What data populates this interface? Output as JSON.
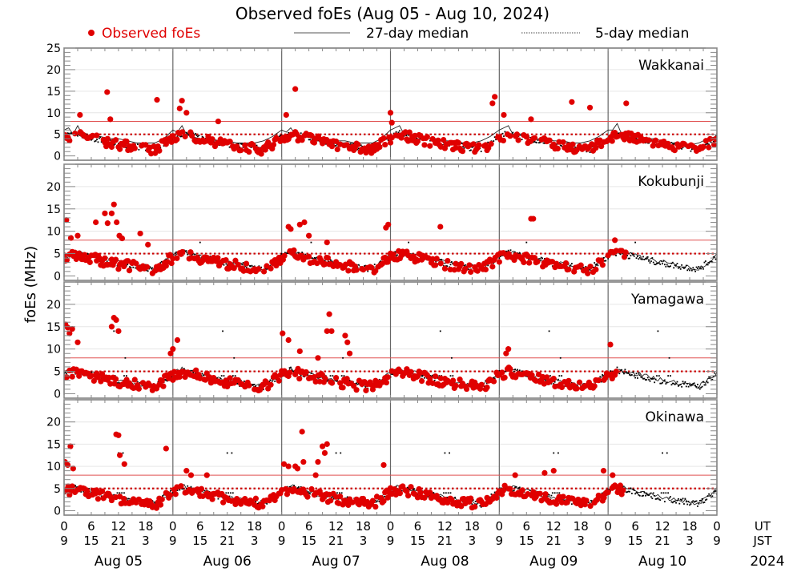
{
  "chart_data": {
    "type": "scatter",
    "title": "Observed foEs (Aug 05 - Aug 10, 2024)",
    "ylabel": "foEs (MHz)",
    "xlabel": "",
    "legend": {
      "placement": "top",
      "entries": [
        {
          "name": "Observed foEs",
          "style": "red-dots",
          "color": "#e00000"
        },
        {
          "name": "27-day median",
          "style": "solid-line",
          "color": "#000000"
        },
        {
          "name": "5-day median",
          "style": "dotted-line",
          "color": "#000000"
        }
      ]
    },
    "x_unit_hours_total": 144,
    "x_ticks_ut": [
      "0",
      "6",
      "12",
      "18",
      "0",
      "6",
      "12",
      "18",
      "0",
      "6",
      "12",
      "18",
      "0",
      "6",
      "12",
      "18",
      "0",
      "6",
      "12",
      "18",
      "0",
      "6",
      "12",
      "18",
      "0"
    ],
    "x_ticks_jst": [
      "9",
      "15",
      "21",
      "3",
      "9",
      "15",
      "21",
      "3",
      "9",
      "15",
      "21",
      "3",
      "9",
      "15",
      "21",
      "3",
      "9",
      "15",
      "21",
      "3",
      "9",
      "15",
      "21",
      "3",
      "9"
    ],
    "x_row_labels": [
      "UT",
      "JST"
    ],
    "day_labels": [
      "Aug 05",
      "Aug 06",
      "Aug 07",
      "Aug 08",
      "Aug 09",
      "Aug 10"
    ],
    "year_label": "2024",
    "grid": true,
    "reference_lines": [
      {
        "value": 8,
        "style": "solid",
        "color": "#e05050"
      },
      {
        "value": 5,
        "style": "dotted",
        "color": "#cc0000"
      }
    ],
    "panels": [
      {
        "station": "Wakkanai",
        "ylim": [
          -1,
          25
        ],
        "yticks": [
          "0",
          "5",
          "10",
          "15",
          "20",
          "25"
        ],
        "observed_hours_end": 144,
        "spikes": [
          [
            3.5,
            9.5
          ],
          [
            9.5,
            14.8
          ],
          [
            10.2,
            8.5
          ],
          [
            20.5,
            13
          ],
          [
            26,
            12.8
          ],
          [
            27,
            10
          ],
          [
            25.5,
            11
          ],
          [
            34,
            8
          ],
          [
            51,
            15.5
          ],
          [
            49,
            9.5
          ],
          [
            72,
            10
          ],
          [
            95,
            13.7
          ],
          [
            94.5,
            12.2
          ],
          [
            97,
            9.5
          ],
          [
            72.3,
            7.7
          ],
          [
            112,
            12.5
          ],
          [
            116,
            11.2
          ],
          [
            124,
            12.2
          ],
          [
            103,
            8.5
          ]
        ],
        "baseline_27": [
          [
            0,
            6
          ],
          [
            1,
            6.5
          ],
          [
            2,
            5
          ],
          [
            3,
            7
          ],
          [
            4,
            5
          ],
          [
            6,
            4.5
          ],
          [
            8,
            4.5
          ],
          [
            10,
            4
          ],
          [
            12,
            4
          ],
          [
            14,
            3.5
          ],
          [
            16,
            3
          ],
          [
            18,
            3
          ],
          [
            20,
            3
          ],
          [
            22,
            4
          ],
          [
            24,
            6
          ],
          [
            25,
            5.5
          ],
          [
            26,
            7
          ],
          [
            27,
            5
          ],
          [
            28,
            4.5
          ],
          [
            30,
            4
          ],
          [
            32,
            4
          ],
          [
            34,
            3.5
          ],
          [
            36,
            3.5
          ],
          [
            38,
            3
          ],
          [
            40,
            3
          ],
          [
            42,
            3
          ],
          [
            44,
            3.5
          ],
          [
            46,
            4.5
          ],
          [
            48,
            6
          ],
          [
            49,
            5.5
          ],
          [
            50,
            6.5
          ],
          [
            51,
            5
          ],
          [
            54,
            4.5
          ],
          [
            56,
            4
          ],
          [
            58,
            4
          ],
          [
            60,
            3.5
          ],
          [
            62,
            3.5
          ],
          [
            64,
            3
          ],
          [
            66,
            3
          ],
          [
            68,
            3
          ],
          [
            70,
            4
          ],
          [
            72,
            6
          ],
          [
            73,
            6.5
          ],
          [
            74,
            7
          ],
          [
            75,
            5
          ],
          [
            78,
            4.5
          ],
          [
            80,
            4
          ],
          [
            82,
            4
          ],
          [
            84,
            3.5
          ],
          [
            86,
            3.5
          ],
          [
            88,
            3
          ],
          [
            90,
            3
          ],
          [
            92,
            3.5
          ],
          [
            94,
            4.5
          ],
          [
            96,
            6
          ],
          [
            97,
            6.5
          ],
          [
            98,
            7
          ],
          [
            99,
            5
          ],
          [
            102,
            4.5
          ],
          [
            104,
            4
          ],
          [
            106,
            4
          ],
          [
            108,
            3.5
          ],
          [
            110,
            3.5
          ],
          [
            112,
            3
          ],
          [
            114,
            3
          ],
          [
            116,
            3.5
          ],
          [
            118,
            4.5
          ],
          [
            120,
            6
          ],
          [
            121,
            6
          ],
          [
            122,
            7.5
          ],
          [
            123,
            5
          ],
          [
            126,
            4.5
          ],
          [
            128,
            4
          ],
          [
            130,
            4
          ],
          [
            132,
            3.5
          ],
          [
            134,
            3
          ],
          [
            136,
            3
          ],
          [
            138,
            2.5
          ],
          [
            140,
            3
          ],
          [
            142,
            4
          ],
          [
            144,
            4.5
          ]
        ]
      },
      {
        "station": "Kokubunji",
        "ylim": [
          -1,
          25
        ],
        "yticks": [
          "0",
          "5",
          "10",
          "15",
          "20"
        ],
        "observed_hours_end": 124,
        "spikes": [
          [
            0.5,
            12.5
          ],
          [
            1.5,
            8.5
          ],
          [
            3,
            9
          ],
          [
            7,
            12
          ],
          [
            9,
            14
          ],
          [
            9.6,
            11.8
          ],
          [
            10.5,
            14
          ],
          [
            11,
            16
          ],
          [
            11.6,
            12
          ],
          [
            12.2,
            9
          ],
          [
            12.8,
            8.4
          ],
          [
            16.8,
            9.5
          ],
          [
            18.5,
            7
          ],
          [
            50,
            10.5
          ],
          [
            49.5,
            11
          ],
          [
            52,
            11.5
          ],
          [
            53,
            12
          ],
          [
            54,
            9
          ],
          [
            58,
            7.5
          ],
          [
            71,
            10.8
          ],
          [
            71.5,
            11.5
          ],
          [
            83,
            11
          ],
          [
            103,
            12.8
          ],
          [
            103.5,
            12.8
          ],
          [
            121.5,
            8
          ]
        ],
        "fives_peaks": [
          [
            30,
            7.5
          ],
          [
            54.5,
            7.5
          ],
          [
            76,
            7.5
          ],
          [
            102,
            7.5
          ],
          [
            126,
            7.5
          ]
        ]
      },
      {
        "station": "Yamagawa",
        "ylim": [
          -1,
          25
        ],
        "yticks": [
          "0",
          "5",
          "10",
          "15",
          "20"
        ],
        "observed_hours_end": 122,
        "spikes": [
          [
            0.3,
            15.5
          ],
          [
            0.8,
            14.8
          ],
          [
            1.2,
            13.5
          ],
          [
            1.8,
            14.5
          ],
          [
            3,
            11.5
          ],
          [
            10.5,
            15
          ],
          [
            11,
            17
          ],
          [
            11.5,
            16.5
          ],
          [
            12,
            14
          ],
          [
            23.5,
            9
          ],
          [
            24,
            10
          ],
          [
            25,
            12
          ],
          [
            48.2,
            13.5
          ],
          [
            49.5,
            12
          ],
          [
            52,
            9.5
          ],
          [
            58,
            14
          ],
          [
            58.5,
            17.8
          ],
          [
            59,
            14
          ],
          [
            62,
            13
          ],
          [
            62.5,
            11.5
          ],
          [
            63,
            9
          ],
          [
            56,
            8
          ],
          [
            98,
            10
          ],
          [
            97.5,
            9
          ],
          [
            120.5,
            11
          ]
        ],
        "fives_peaks": [
          [
            11,
            14
          ],
          [
            13.5,
            8
          ],
          [
            35,
            14
          ],
          [
            37.5,
            8
          ],
          [
            59,
            14
          ],
          [
            61.5,
            8
          ],
          [
            83,
            14
          ],
          [
            85.5,
            8
          ],
          [
            107,
            14
          ],
          [
            109.5,
            8
          ],
          [
            131,
            14
          ],
          [
            133.5,
            8
          ]
        ]
      },
      {
        "station": "Okinawa",
        "ylim": [
          -1,
          25
        ],
        "yticks": [
          "0",
          "5",
          "10",
          "15",
          "20"
        ],
        "observed_hours_end": 124,
        "spikes": [
          [
            0.2,
            11
          ],
          [
            0.8,
            10.3
          ],
          [
            1.4,
            14.5
          ],
          [
            2,
            9.5
          ],
          [
            11.5,
            17.2
          ],
          [
            12,
            17
          ],
          [
            12.3,
            12.5
          ],
          [
            13.3,
            10.5
          ],
          [
            22.5,
            14
          ],
          [
            27,
            9
          ],
          [
            28,
            8
          ],
          [
            31.5,
            8
          ],
          [
            48.5,
            10.5
          ],
          [
            49.5,
            10
          ],
          [
            51,
            10
          ],
          [
            51.5,
            9.5
          ],
          [
            52.5,
            17.8
          ],
          [
            52.8,
            11
          ],
          [
            57,
            14.5
          ],
          [
            58,
            15
          ],
          [
            57.5,
            13
          ],
          [
            56,
            11
          ],
          [
            55.5,
            8
          ],
          [
            70.5,
            10.3
          ],
          [
            99.5,
            8
          ],
          [
            106,
            8.5
          ],
          [
            108,
            9
          ],
          [
            119,
            9
          ],
          [
            121,
            8
          ]
        ],
        "fives_peaks": [
          [
            12,
            13
          ],
          [
            13,
            13
          ],
          [
            36,
            13
          ],
          [
            37,
            13
          ],
          [
            60,
            13
          ],
          [
            61,
            13
          ],
          [
            84,
            13
          ],
          [
            85,
            13
          ],
          [
            108,
            13
          ],
          [
            109,
            13
          ],
          [
            132,
            13
          ],
          [
            133,
            13
          ]
        ]
      }
    ]
  }
}
